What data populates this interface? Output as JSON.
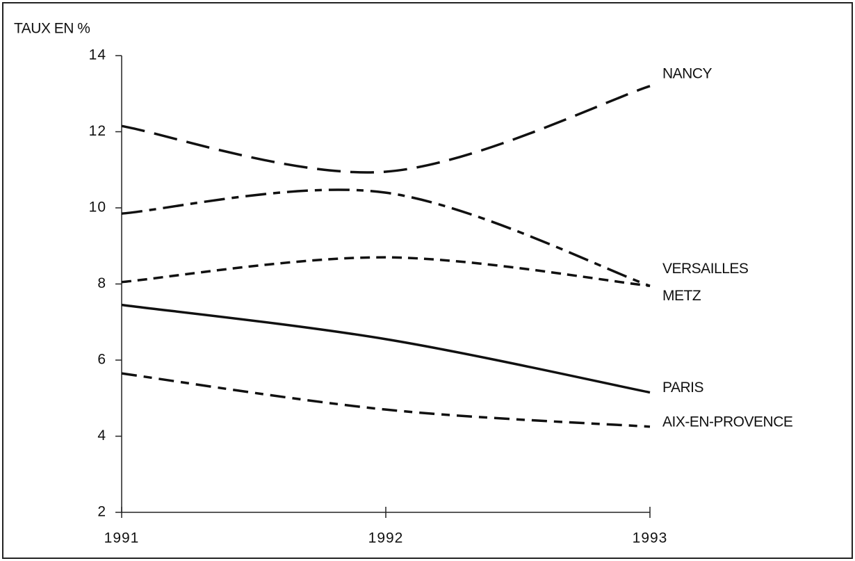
{
  "chart_data": {
    "type": "line",
    "y_label": "TAUX EN %",
    "x": [
      1991,
      1992,
      1993
    ],
    "xlim": [
      1991,
      1993
    ],
    "xticks": [
      1991,
      1992,
      1993
    ],
    "ylim": [
      2,
      14
    ],
    "yticks": [
      2,
      4,
      6,
      8,
      10,
      12,
      14
    ],
    "grid": false,
    "series": [
      {
        "name": "NANCY",
        "color": "#111111",
        "dash": "long-dash",
        "values": [
          12.15,
          10.95,
          13.2
        ]
      },
      {
        "name": "VERSAILLES",
        "color": "#111111",
        "dash": "dash-dot",
        "values": [
          9.85,
          10.4,
          7.95
        ]
      },
      {
        "name": "METZ",
        "color": "#111111",
        "dash": "short-dash",
        "values": [
          8.05,
          8.7,
          7.95
        ]
      },
      {
        "name": "PARIS",
        "color": "#111111",
        "dash": "solid",
        "values": [
          7.45,
          6.55,
          5.15
        ]
      },
      {
        "name": "AIX-EN-PROVENCE",
        "color": "#111111",
        "dash": "dash-dash",
        "values": [
          5.65,
          4.7,
          4.25
        ]
      }
    ]
  }
}
